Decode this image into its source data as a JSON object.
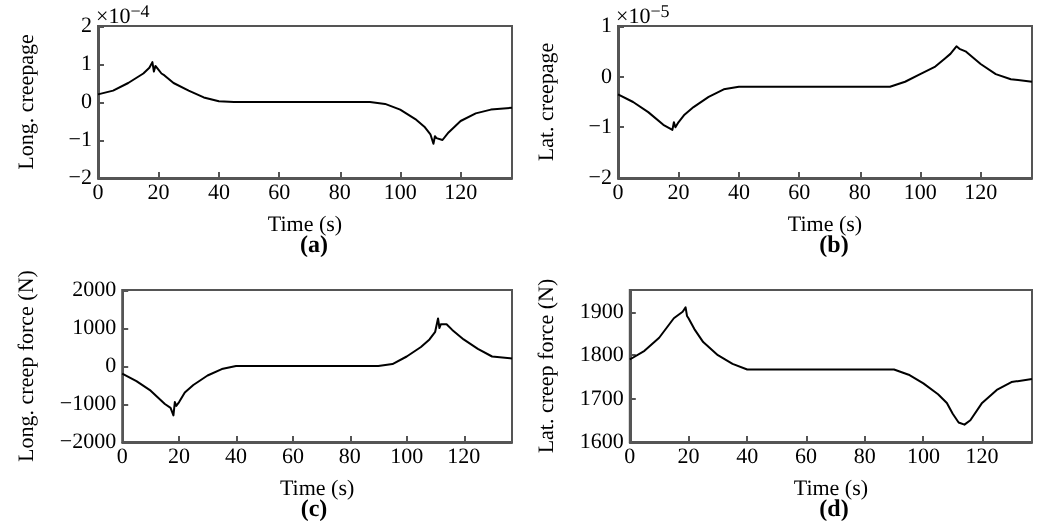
{
  "chart_data": [
    {
      "type": "line",
      "title": "(a)",
      "xlabel": "Time (s)",
      "ylabel": "Long. creepage",
      "annotations": [
        "×10$^{−4}$"
      ],
      "color": "#000000",
      "grid": false,
      "marker": "none",
      "line_style": "solid",
      "x": [
        0,
        5,
        10,
        15,
        17,
        18,
        18.5,
        19,
        20,
        21,
        22,
        25,
        30,
        35,
        40,
        45,
        90,
        95,
        100,
        105,
        108,
        110,
        111,
        111.5,
        112,
        114,
        116,
        120,
        125,
        130,
        137
      ],
      "values": [
        0.2,
        0.3,
        0.5,
        0.75,
        0.9,
        1.05,
        0.8,
        0.95,
        0.85,
        0.75,
        0.7,
        0.5,
        0.3,
        0.12,
        0.02,
        0,
        0,
        -0.05,
        -0.2,
        -0.45,
        -0.65,
        -0.85,
        -1.1,
        -0.9,
        -0.95,
        -1.0,
        -0.8,
        -0.5,
        -0.3,
        -0.2,
        -0.15
      ],
      "xlim": [
        0,
        137
      ],
      "xticks": [
        0,
        20,
        40,
        60,
        80,
        100,
        120
      ],
      "ylim": [
        -2,
        2
      ],
      "yticks": [
        {
          "value": -2,
          "label": "−2"
        },
        {
          "value": -1,
          "label": "−1"
        },
        0,
        1,
        2
      ]
    },
    {
      "type": "line",
      "title": "(b)",
      "xlabel": "Time (s)",
      "ylabel": "Lat. creepage",
      "annotations": [
        "×10$^{−5}$"
      ],
      "color": "#000000",
      "grid": false,
      "marker": "none",
      "line_style": "solid",
      "x": [
        0,
        5,
        10,
        15,
        18,
        18.5,
        19,
        20,
        22,
        25,
        30,
        35,
        40,
        90,
        95,
        100,
        105,
        108,
        110,
        112,
        113,
        115,
        120,
        125,
        130,
        137
      ],
      "values": [
        -0.35,
        -0.5,
        -0.7,
        -0.95,
        -1.05,
        -0.9,
        -1.0,
        -0.9,
        -0.75,
        -0.6,
        -0.4,
        -0.25,
        -0.2,
        -0.2,
        -0.1,
        0.05,
        0.2,
        0.35,
        0.45,
        0.6,
        0.55,
        0.5,
        0.25,
        0.05,
        -0.05,
        -0.1
      ],
      "xlim": [
        0,
        137
      ],
      "xticks": [
        0,
        20,
        40,
        60,
        80,
        100,
        120
      ],
      "ylim": [
        -2,
        1
      ],
      "yticks": [
        {
          "value": -2,
          "label": "−2"
        },
        {
          "value": -1,
          "label": "−1"
        },
        0,
        1
      ]
    },
    {
      "type": "line",
      "title": "(c)",
      "xlabel": "Time (s)",
      "ylabel": "Long. creep force (N)",
      "color": "#000000",
      "grid": false,
      "marker": "none",
      "line_style": "solid",
      "x": [
        0,
        5,
        10,
        15,
        17,
        18,
        18.5,
        19,
        20,
        22,
        25,
        30,
        35,
        40,
        90,
        95,
        100,
        105,
        108,
        110,
        111,
        111.5,
        112,
        114,
        116,
        120,
        125,
        130,
        137
      ],
      "values": [
        -200,
        -400,
        -650,
        -1000,
        -1100,
        -1300,
        -950,
        -1050,
        -950,
        -700,
        -500,
        -250,
        -80,
        0,
        0,
        50,
        250,
        500,
        700,
        900,
        1250,
        1000,
        1100,
        1100,
        950,
        700,
        450,
        250,
        200
      ],
      "xlim": [
        0,
        137
      ],
      "xticks": [
        0,
        20,
        40,
        60,
        80,
        100,
        120
      ],
      "ylim": [
        -2000,
        2000
      ],
      "yticks": [
        {
          "value": -2000,
          "label": "−2000"
        },
        {
          "value": -1000,
          "label": "−1000"
        },
        0,
        1000,
        2000
      ]
    },
    {
      "type": "line",
      "title": "(d)",
      "xlabel": "Time (s)",
      "ylabel": "Lat. creep force (N)",
      "color": "#000000",
      "grid": false,
      "marker": "none",
      "line_style": "solid",
      "x": [
        0,
        5,
        10,
        15,
        18,
        19,
        19.5,
        20,
        22,
        25,
        30,
        35,
        40,
        90,
        95,
        100,
        105,
        108,
        110,
        112,
        114,
        116,
        120,
        125,
        130,
        137
      ],
      "values": [
        1790,
        1810,
        1840,
        1885,
        1900,
        1910,
        1890,
        1885,
        1860,
        1830,
        1800,
        1780,
        1767,
        1767,
        1755,
        1735,
        1710,
        1690,
        1665,
        1645,
        1640,
        1650,
        1690,
        1720,
        1738,
        1745
      ],
      "xlim": [
        0,
        137
      ],
      "xticks": [
        0,
        20,
        40,
        60,
        80,
        100,
        120
      ],
      "ylim": [
        1600,
        1950
      ],
      "yticks": [
        1600,
        1700,
        1800,
        1900
      ]
    }
  ]
}
